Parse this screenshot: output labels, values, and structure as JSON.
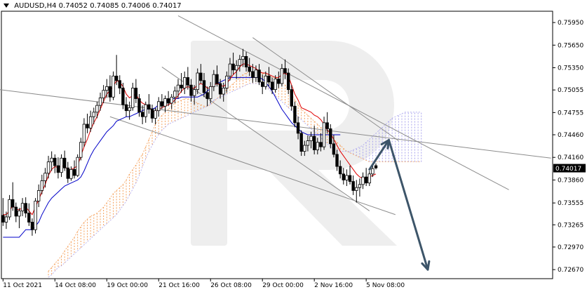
{
  "chart_data": {
    "type": "candlestick",
    "header": {
      "symbol_timeframe": "AUDUSD,H4",
      "ohlc": [
        "0.74052",
        "0.74085",
        "0.74006",
        "0.74017"
      ]
    },
    "current_price": 0.74017,
    "current_price_label": "0.74017",
    "ylim": [
      0.7255,
      0.761
    ],
    "y_ticks": [
      0.7595,
      0.7565,
      0.7535,
      0.75055,
      0.74755,
      0.7446,
      0.7416,
      0.7386,
      0.73555,
      0.73265,
      0.7297,
      0.7267
    ],
    "y_tick_labels": [
      "0.75950",
      "0.75650",
      "0.75350",
      "0.75055",
      "0.74755",
      "0.74460",
      "0.74160",
      "0.73860",
      "0.73555",
      "0.73265",
      "0.72970",
      "0.72670"
    ],
    "x_tick_labels": [
      "11 Oct 2021",
      "14 Oct 08:00",
      "19 Oct 00:00",
      "21 Oct 16:00",
      "26 Oct 08:00",
      "29 Oct 00:00",
      "2 Nov 16:00",
      "5 Nov 08:00"
    ],
    "x_tick_bar_index": [
      0,
      16,
      32,
      48,
      64,
      80,
      96,
      112
    ],
    "bar_count": 120,
    "future_bars": 50,
    "candles": [
      [
        0.7339,
        0.7362,
        0.7325,
        0.733
      ],
      [
        0.733,
        0.7344,
        0.7321,
        0.7337
      ],
      [
        0.7337,
        0.7366,
        0.7333,
        0.736
      ],
      [
        0.736,
        0.7383,
        0.7345,
        0.735
      ],
      [
        0.735,
        0.7356,
        0.733,
        0.7338
      ],
      [
        0.7338,
        0.7349,
        0.7322,
        0.7345
      ],
      [
        0.7345,
        0.7362,
        0.7338,
        0.7355
      ],
      [
        0.7355,
        0.7363,
        0.7336,
        0.7342
      ],
      [
        0.7342,
        0.7355,
        0.7325,
        0.733
      ],
      [
        0.733,
        0.7335,
        0.7312,
        0.732
      ],
      [
        0.732,
        0.7362,
        0.7315,
        0.7358
      ],
      [
        0.7358,
        0.738,
        0.735,
        0.7372
      ],
      [
        0.7372,
        0.7393,
        0.7367,
        0.7385
      ],
      [
        0.7385,
        0.7402,
        0.7376,
        0.7395
      ],
      [
        0.7395,
        0.7418,
        0.7388,
        0.741
      ],
      [
        0.741,
        0.7424,
        0.7398,
        0.7415
      ],
      [
        0.7415,
        0.742,
        0.7395,
        0.7405
      ],
      [
        0.7405,
        0.7416,
        0.7388,
        0.7396
      ],
      [
        0.7396,
        0.742,
        0.739,
        0.7415
      ],
      [
        0.7415,
        0.7425,
        0.7398,
        0.7402
      ],
      [
        0.7402,
        0.741,
        0.7382,
        0.7388
      ],
      [
        0.7388,
        0.7404,
        0.7385,
        0.74
      ],
      [
        0.74,
        0.7412,
        0.7388,
        0.7392
      ],
      [
        0.7392,
        0.742,
        0.739,
        0.7416
      ],
      [
        0.7416,
        0.7442,
        0.7412,
        0.7436
      ],
      [
        0.7436,
        0.7468,
        0.743,
        0.746
      ],
      [
        0.746,
        0.7474,
        0.7448,
        0.7455
      ],
      [
        0.7455,
        0.7478,
        0.745,
        0.747
      ],
      [
        0.747,
        0.7482,
        0.746,
        0.7476
      ],
      [
        0.7476,
        0.749,
        0.7468,
        0.7485
      ],
      [
        0.7485,
        0.7502,
        0.7478,
        0.7495
      ],
      [
        0.7495,
        0.7512,
        0.7488,
        0.7505
      ],
      [
        0.7505,
        0.752,
        0.7495,
        0.751
      ],
      [
        0.751,
        0.7525,
        0.749,
        0.7496
      ],
      [
        0.7496,
        0.753,
        0.7492,
        0.7524
      ],
      [
        0.7524,
        0.7552,
        0.7512,
        0.7518
      ],
      [
        0.7518,
        0.7525,
        0.75,
        0.7508
      ],
      [
        0.7508,
        0.7515,
        0.748,
        0.7486
      ],
      [
        0.7486,
        0.7496,
        0.747,
        0.7478
      ],
      [
        0.7478,
        0.749,
        0.7466,
        0.7482
      ],
      [
        0.7482,
        0.7515,
        0.7478,
        0.7508
      ],
      [
        0.7508,
        0.752,
        0.7488,
        0.7494
      ],
      [
        0.7494,
        0.75,
        0.747,
        0.7476
      ],
      [
        0.7476,
        0.7485,
        0.746,
        0.747
      ],
      [
        0.747,
        0.749,
        0.7462,
        0.7486
      ],
      [
        0.7486,
        0.75,
        0.7474,
        0.748
      ],
      [
        0.748,
        0.7486,
        0.7462,
        0.7468
      ],
      [
        0.7468,
        0.7482,
        0.746,
        0.7478
      ],
      [
        0.7478,
        0.7496,
        0.747,
        0.749
      ],
      [
        0.749,
        0.75,
        0.748,
        0.7484
      ],
      [
        0.7484,
        0.7498,
        0.7476,
        0.7494
      ],
      [
        0.7494,
        0.7504,
        0.7484,
        0.7488
      ],
      [
        0.7488,
        0.75,
        0.748,
        0.7496
      ],
      [
        0.7496,
        0.751,
        0.7488,
        0.7504
      ],
      [
        0.7504,
        0.752,
        0.7494,
        0.7512
      ],
      [
        0.7512,
        0.7528,
        0.7502,
        0.7508
      ],
      [
        0.7508,
        0.753,
        0.75,
        0.7522
      ],
      [
        0.7522,
        0.7536,
        0.7506,
        0.7512
      ],
      [
        0.7512,
        0.752,
        0.749,
        0.7498
      ],
      [
        0.7498,
        0.7512,
        0.7486,
        0.7506
      ],
      [
        0.7506,
        0.7534,
        0.75,
        0.7528
      ],
      [
        0.7528,
        0.754,
        0.7514,
        0.7518
      ],
      [
        0.7518,
        0.7528,
        0.7496,
        0.7502
      ],
      [
        0.7502,
        0.751,
        0.7484,
        0.7494
      ],
      [
        0.7494,
        0.7516,
        0.7488,
        0.751
      ],
      [
        0.751,
        0.7532,
        0.7504,
        0.7526
      ],
      [
        0.7526,
        0.7538,
        0.751,
        0.7514
      ],
      [
        0.7514,
        0.752,
        0.7494,
        0.75
      ],
      [
        0.75,
        0.7515,
        0.749,
        0.7508
      ],
      [
        0.7508,
        0.753,
        0.7502,
        0.7524
      ],
      [
        0.7524,
        0.7548,
        0.7518,
        0.754
      ],
      [
        0.754,
        0.7555,
        0.7526,
        0.7532
      ],
      [
        0.7532,
        0.7545,
        0.752,
        0.7538
      ],
      [
        0.7538,
        0.7552,
        0.753,
        0.7546
      ],
      [
        0.7546,
        0.756,
        0.7536,
        0.755
      ],
      [
        0.755,
        0.7556,
        0.753,
        0.7536
      ],
      [
        0.7536,
        0.7548,
        0.7524,
        0.753
      ],
      [
        0.753,
        0.754,
        0.7515,
        0.7522
      ],
      [
        0.7522,
        0.7538,
        0.7516,
        0.7532
      ],
      [
        0.7532,
        0.754,
        0.7512,
        0.7516
      ],
      [
        0.7516,
        0.7526,
        0.75,
        0.751
      ],
      [
        0.751,
        0.753,
        0.7506,
        0.7524
      ],
      [
        0.7524,
        0.7536,
        0.751,
        0.7516
      ],
      [
        0.7516,
        0.7522,
        0.75,
        0.7506
      ],
      [
        0.7506,
        0.7525,
        0.7502,
        0.752
      ],
      [
        0.752,
        0.753,
        0.7508,
        0.7514
      ],
      [
        0.7514,
        0.754,
        0.751,
        0.7534
      ],
      [
        0.7534,
        0.7546,
        0.752,
        0.7528
      ],
      [
        0.7528,
        0.7534,
        0.75,
        0.7506
      ],
      [
        0.7506,
        0.7512,
        0.7478,
        0.7484
      ],
      [
        0.7484,
        0.749,
        0.7456,
        0.7462
      ],
      [
        0.7462,
        0.747,
        0.744,
        0.7448
      ],
      [
        0.7448,
        0.7452,
        0.7418,
        0.7424
      ],
      [
        0.7424,
        0.7438,
        0.7418,
        0.7432
      ],
      [
        0.7432,
        0.7445,
        0.7424,
        0.7438
      ],
      [
        0.7438,
        0.745,
        0.7428,
        0.7444
      ],
      [
        0.7444,
        0.7458,
        0.742,
        0.7426
      ],
      [
        0.7426,
        0.7442,
        0.742,
        0.7436
      ],
      [
        0.7436,
        0.7448,
        0.7424,
        0.743
      ],
      [
        0.743,
        0.747,
        0.7426,
        0.7462
      ],
      [
        0.7462,
        0.7476,
        0.7448,
        0.7454
      ],
      [
        0.7454,
        0.746,
        0.7428,
        0.7434
      ],
      [
        0.7434,
        0.7446,
        0.7416,
        0.742
      ],
      [
        0.742,
        0.7426,
        0.7398,
        0.7404
      ],
      [
        0.7404,
        0.7412,
        0.7388,
        0.7394
      ],
      [
        0.7394,
        0.7402,
        0.738,
        0.7386
      ],
      [
        0.7386,
        0.74,
        0.7378,
        0.7392
      ],
      [
        0.7392,
        0.7405,
        0.738,
        0.7384
      ],
      [
        0.7384,
        0.7392,
        0.7366,
        0.7372
      ],
      [
        0.7372,
        0.7386,
        0.7356,
        0.7376
      ],
      [
        0.7376,
        0.7388,
        0.7364,
        0.738
      ],
      [
        0.738,
        0.7396,
        0.7374,
        0.739
      ],
      [
        0.739,
        0.7402,
        0.7378,
        0.7382
      ],
      [
        0.7382,
        0.7398,
        0.7378,
        0.7394
      ],
      [
        0.7394,
        0.7406,
        0.739,
        0.7401
      ],
      [
        0.7405,
        0.7408,
        0.74,
        0.7402
      ]
    ],
    "tenkan": [
      0.734,
      0.734,
      0.7345,
      0.7352,
      0.7348,
      0.7346,
      0.735,
      0.735,
      0.7345,
      0.734,
      0.735,
      0.736,
      0.737,
      0.738,
      0.7392,
      0.74,
      0.7404,
      0.7402,
      0.7405,
      0.7404,
      0.74,
      0.74,
      0.7402,
      0.7405,
      0.7418,
      0.743,
      0.744,
      0.7452,
      0.7462,
      0.747,
      0.748,
      0.749,
      0.75,
      0.7505,
      0.751,
      0.7518,
      0.7516,
      0.751,
      0.75,
      0.7495,
      0.7498,
      0.75,
      0.7492,
      0.7488,
      0.7486,
      0.7482,
      0.7478,
      0.7476,
      0.748,
      0.7482,
      0.7484,
      0.7486,
      0.7488,
      0.7492,
      0.7498,
      0.7504,
      0.7508,
      0.751,
      0.7508,
      0.7508,
      0.7512,
      0.7514,
      0.7512,
      0.7508,
      0.7508,
      0.7512,
      0.7514,
      0.7512,
      0.751,
      0.7514,
      0.752,
      0.7526,
      0.753,
      0.7536,
      0.754,
      0.754,
      0.7538,
      0.7536,
      0.7534,
      0.753,
      0.7528,
      0.7528,
      0.7526,
      0.7524,
      0.7522,
      0.7522,
      0.7526,
      0.7528,
      0.7524,
      0.7512,
      0.75,
      0.7492,
      0.7482,
      0.748,
      0.7478,
      0.7476,
      0.7472,
      0.747,
      0.7466,
      0.746,
      0.7452,
      0.7448,
      0.744,
      0.7432,
      0.7424,
      0.7418,
      0.7412,
      0.7406,
      0.74,
      0.7394,
      0.739,
      0.7388,
      0.7388,
      0.739,
      0.7392,
      0.7394
    ],
    "kijun_end": 104,
    "kijun": [
      0.731,
      0.731,
      0.731,
      0.731,
      0.731,
      0.731,
      0.7315,
      0.732,
      0.732,
      0.732,
      0.7325,
      0.733,
      0.734,
      0.7348,
      0.7356,
      0.7362,
      0.7366,
      0.737,
      0.7374,
      0.7378,
      0.738,
      0.7382,
      0.7384,
      0.7386,
      0.739,
      0.7398,
      0.7408,
      0.7418,
      0.7426,
      0.7432,
      0.7438,
      0.7444,
      0.745,
      0.7454,
      0.7458,
      0.7464,
      0.7466,
      0.7468,
      0.747,
      0.747,
      0.7472,
      0.7474,
      0.7476,
      0.7478,
      0.748,
      0.748,
      0.748,
      0.7482,
      0.7486,
      0.7488,
      0.749,
      0.7492,
      0.7494,
      0.7494,
      0.7494,
      0.7496,
      0.7496,
      0.7496,
      0.7496,
      0.7496,
      0.7496,
      0.7498,
      0.75,
      0.7504,
      0.7508,
      0.7512,
      0.7514,
      0.7516,
      0.7518,
      0.752,
      0.7522,
      0.7522,
      0.7522,
      0.7522,
      0.7522,
      0.7522,
      0.7522,
      0.7522,
      0.7522,
      0.7522,
      0.752,
      0.7516,
      0.751,
      0.7504,
      0.7496,
      0.7488,
      0.748,
      0.7474,
      0.7468,
      0.7462,
      0.7458,
      0.7454,
      0.745,
      0.7448,
      0.7446,
      0.7446,
      0.7446,
      0.7446,
      0.7446,
      0.7446,
      0.7446,
      0.7446,
      0.7446,
      0.7446,
      0.7446
    ],
    "cloud": {
      "start_index": 14,
      "span_a": [
        0.7265,
        0.727,
        0.7275,
        0.728,
        0.7285,
        0.7292,
        0.7298,
        0.7304,
        0.731,
        0.7318,
        0.7324,
        0.733,
        0.7334,
        0.7338,
        0.734,
        0.7342,
        0.7346,
        0.735,
        0.7356,
        0.7362,
        0.7368,
        0.7372,
        0.7376,
        0.738,
        0.7386,
        0.7394,
        0.74,
        0.7406,
        0.7414,
        0.742,
        0.743,
        0.744,
        0.745,
        0.746,
        0.7466,
        0.7472,
        0.7476,
        0.748,
        0.7484,
        0.7488,
        0.749,
        0.7492,
        0.7494,
        0.7494,
        0.7492,
        0.749,
        0.7488,
        0.7486,
        0.7484,
        0.7484,
        0.7486,
        0.749,
        0.7494,
        0.7498,
        0.7502,
        0.7506,
        0.751,
        0.7514,
        0.7518,
        0.7522,
        0.7526,
        0.7528,
        0.753,
        0.753,
        0.753,
        0.753,
        0.7528,
        0.7526,
        0.7524,
        0.7522,
        0.7522,
        0.752,
        0.7516,
        0.7512,
        0.7506,
        0.75,
        0.7492,
        0.7486,
        0.748,
        0.7476,
        0.7472,
        0.7468,
        0.7464,
        0.746,
        0.7456,
        0.7452,
        0.7448,
        0.7444,
        0.744,
        0.7436,
        0.7432,
        0.7428,
        0.7424,
        0.7422,
        0.742,
        0.7418,
        0.7416,
        0.7414,
        0.7412,
        0.741,
        0.741,
        0.741,
        0.741,
        0.741,
        0.741,
        0.741,
        0.741,
        0.741,
        0.741,
        0.741,
        0.741,
        0.741,
        0.741,
        0.741,
        0.741,
        0.741
      ],
      "span_b": [
        0.7257,
        0.726,
        0.7265,
        0.727,
        0.7272,
        0.7276,
        0.728,
        0.7284,
        0.7288,
        0.7292,
        0.7296,
        0.73,
        0.7304,
        0.7308,
        0.7312,
        0.7316,
        0.732,
        0.7324,
        0.7328,
        0.7332,
        0.7336,
        0.734,
        0.7346,
        0.7352,
        0.7358,
        0.7366,
        0.7374,
        0.7382,
        0.7392,
        0.7404,
        0.7414,
        0.7424,
        0.7432,
        0.744,
        0.7446,
        0.7452,
        0.7456,
        0.746,
        0.7462,
        0.7464,
        0.7466,
        0.7468,
        0.747,
        0.7472,
        0.7474,
        0.7476,
        0.7478,
        0.748,
        0.7482,
        0.7484,
        0.7488,
        0.7492,
        0.7494,
        0.7496,
        0.7498,
        0.75,
        0.7502,
        0.7504,
        0.7506,
        0.7508,
        0.751,
        0.7512,
        0.7514,
        0.7514,
        0.7514,
        0.7514,
        0.7512,
        0.751,
        0.7506,
        0.7502,
        0.7498,
        0.7494,
        0.749,
        0.7486,
        0.7482,
        0.7478,
        0.7474,
        0.747,
        0.7466,
        0.7462,
        0.7458,
        0.7454,
        0.745,
        0.7446,
        0.7442,
        0.7438,
        0.7434,
        0.743,
        0.7428,
        0.7426,
        0.7424,
        0.7424,
        0.7424,
        0.7424,
        0.7426,
        0.7428,
        0.743,
        0.7432,
        0.7436,
        0.744,
        0.7444,
        0.7448,
        0.7452,
        0.7456,
        0.746,
        0.7464,
        0.7468,
        0.747,
        0.7472,
        0.7474,
        0.7476,
        0.7476,
        0.7476,
        0.7476,
        0.7476,
        0.7476
      ]
    },
    "trendlines": [
      {
        "name": "upper-channel-a",
        "from": [
          -5,
          0.7508
        ],
        "to": [
          169,
          0.7415
        ]
      },
      {
        "name": "lower-channel-a",
        "from": [
          33,
          0.747
        ],
        "to": [
          121,
          0.734
        ]
      },
      {
        "name": "upper-channel-b",
        "from": [
          54,
          0.7604
        ],
        "to": [
          156,
          0.7373
        ]
      },
      {
        "name": "lower-channel-b",
        "from": [
          49,
          0.7536
        ],
        "to": [
          113,
          0.7345
        ]
      },
      {
        "name": "falling-wedge-line",
        "from": [
          77,
          0.7575
        ],
        "to": [
          122,
          0.7438
        ]
      }
    ],
    "forecast_path": [
      [
        113,
        0.74
      ],
      [
        119,
        0.7439
      ],
      [
        131,
        0.7267
      ]
    ],
    "colors": {
      "candles": "#000000",
      "tenkan": "#e00000",
      "kijun": "#0000c8",
      "cloud_up": "#f5a05a",
      "cloud_down": "#a9a3ee",
      "trendline": "#8c8c8c",
      "forecast_arrow": "#3d5569",
      "current_price_tag": "#000000",
      "watermark": "#eeeeee"
    }
  }
}
